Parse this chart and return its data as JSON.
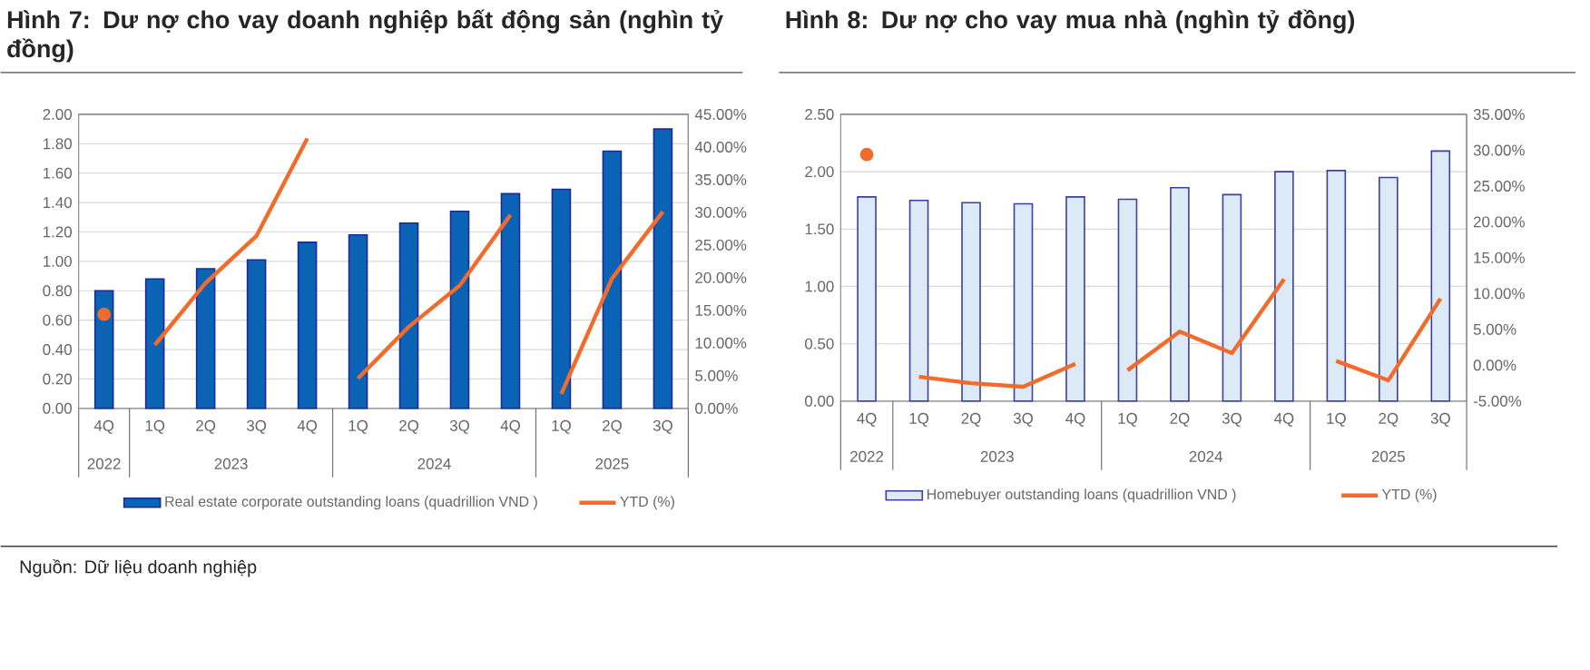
{
  "chart_data": [
    {
      "type": "bar",
      "title": "Hình 7: Dư nợ cho vay doanh nghiệp bất động sản (nghìn tỷ đồng)",
      "categories": [
        "4Q",
        "1Q",
        "2Q",
        "3Q",
        "4Q",
        "1Q",
        "2Q",
        "3Q",
        "4Q",
        "1Q",
        "2Q",
        "3Q"
      ],
      "series": [
        {
          "name": "Real estate corporate outstanding loans (quadrillion VND )",
          "color": "#0b63b5",
          "values": [
            0.8,
            0.88,
            0.95,
            1.01,
            1.13,
            1.18,
            1.26,
            1.34,
            1.46,
            1.49,
            1.75,
            1.9
          ]
        },
        {
          "type": "line",
          "axis": "y2",
          "marker": "circle",
          "color": "#f26b2a",
          "values": [
            14.4,
            null,
            null,
            null,
            null,
            null,
            null,
            null,
            null,
            null,
            null,
            null
          ]
        },
        {
          "name": "YTD (%)",
          "type": "line",
          "axis": "y2",
          "color": "#f26b2a",
          "values": [
            null,
            9.7,
            19.2,
            26.4,
            41.3,
            null,
            null,
            null,
            null,
            null,
            null,
            null
          ]
        },
        {
          "type": "line",
          "axis": "y2",
          "color": "#f26b2a",
          "values": [
            null,
            null,
            null,
            null,
            null,
            4.6,
            12.5,
            18.8,
            29.6,
            null,
            null,
            null
          ]
        },
        {
          "type": "line",
          "axis": "y2",
          "color": "#f26b2a",
          "values": [
            null,
            null,
            null,
            null,
            null,
            null,
            null,
            null,
            null,
            2.2,
            19.9,
            30.1
          ]
        }
      ],
      "ylim": [
        0,
        2
      ],
      "yticks": [
        {
          "value": 0,
          "label": "0.00"
        },
        {
          "value": 0.2,
          "label": "0.20"
        },
        {
          "value": 0.4,
          "label": "0.40"
        },
        {
          "value": 0.6,
          "label": "0.60"
        },
        {
          "value": 0.8,
          "label": "0.80"
        },
        {
          "value": 1,
          "label": "1.00"
        },
        {
          "value": 1.2,
          "label": "1.20"
        },
        {
          "value": 1.4,
          "label": "1.40"
        },
        {
          "value": 1.6,
          "label": "1.60"
        },
        {
          "value": 1.8,
          "label": "1.80"
        },
        {
          "value": 2,
          "label": "2.00"
        }
      ],
      "y2lim": [
        0,
        45
      ],
      "y2ticks": [
        {
          "value": 0,
          "label": "0.00%"
        },
        {
          "value": 5,
          "label": "5.00%"
        },
        {
          "value": 10,
          "label": "10.00%"
        },
        {
          "value": 15,
          "label": "15.00%"
        },
        {
          "value": 20,
          "label": "20.00%"
        },
        {
          "value": 25,
          "label": "25.00%"
        },
        {
          "value": 30,
          "label": "30.00%"
        },
        {
          "value": 35,
          "label": "35.00%"
        },
        {
          "value": 40,
          "label": "40.00%"
        },
        {
          "value": 45,
          "label": "45.00%"
        }
      ],
      "grid": "y",
      "legend": "bottom",
      "annotations": [
        "2022",
        "2023",
        "2024",
        "2025"
      ]
    },
    {
      "type": "bar",
      "title": "Hình 8: Dư nợ cho vay mua nhà (nghìn tỷ đồng)",
      "categories": [
        "4Q",
        "1Q",
        "2Q",
        "3Q",
        "4Q",
        "1Q",
        "2Q",
        "3Q",
        "4Q",
        "1Q",
        "2Q",
        "3Q"
      ],
      "series": [
        {
          "name": "Homebuyer outstanding loans (quadrillion VND )",
          "color": "#dce9f6",
          "values": [
            1.78,
            1.75,
            1.73,
            1.72,
            1.78,
            1.76,
            1.86,
            1.8,
            2.0,
            2.01,
            1.95,
            2.18
          ]
        },
        {
          "type": "line",
          "axis": "y2",
          "marker": "circle",
          "color": "#f26b2a",
          "values": [
            29.4,
            null,
            null,
            null,
            null,
            null,
            null,
            null,
            null,
            null,
            null,
            null
          ]
        },
        {
          "name": "YTD (%)",
          "type": "line",
          "axis": "y2",
          "color": "#f26b2a",
          "values": [
            null,
            -1.6,
            -2.5,
            -3.0,
            0.2,
            null,
            null,
            null,
            null,
            null,
            null,
            null
          ]
        },
        {
          "type": "line",
          "axis": "y2",
          "color": "#f26b2a",
          "values": [
            null,
            null,
            null,
            null,
            null,
            -0.7,
            4.7,
            1.7,
            12.0,
            null,
            null,
            null
          ]
        },
        {
          "type": "line",
          "axis": "y2",
          "color": "#f26b2a",
          "values": [
            null,
            null,
            null,
            null,
            null,
            null,
            null,
            null,
            null,
            0.6,
            -2.1,
            9.3
          ]
        }
      ],
      "ylim": [
        0,
        2.5
      ],
      "yticks": [
        {
          "value": 0,
          "label": "0.00"
        },
        {
          "value": 0.5,
          "label": "0.50"
        },
        {
          "value": 1,
          "label": "1.00"
        },
        {
          "value": 1.5,
          "label": "1.50"
        },
        {
          "value": 2,
          "label": "2.00"
        },
        {
          "value": 2.5,
          "label": "2.50"
        }
      ],
      "y2lim": [
        -5,
        35
      ],
      "y2ticks": [
        {
          "value": -5,
          "label": "-5.00%"
        },
        {
          "value": 0,
          "label": "0.00%"
        },
        {
          "value": 5,
          "label": "5.00%"
        },
        {
          "value": 10,
          "label": "10.00%"
        },
        {
          "value": 15,
          "label": "15.00%"
        },
        {
          "value": 20,
          "label": "20.00%"
        },
        {
          "value": 25,
          "label": "25.00%"
        },
        {
          "value": 30,
          "label": "30.00%"
        },
        {
          "value": 35,
          "label": "35.00%"
        }
      ],
      "grid": "y",
      "legend": "bottom",
      "annotations": [
        "2022",
        "2023",
        "2024",
        "2025"
      ]
    },
    {
      "type": "other",
      "annotations": [
        "Nguồn: Dữ liệu doanh nghiệp"
      ]
    }
  ]
}
